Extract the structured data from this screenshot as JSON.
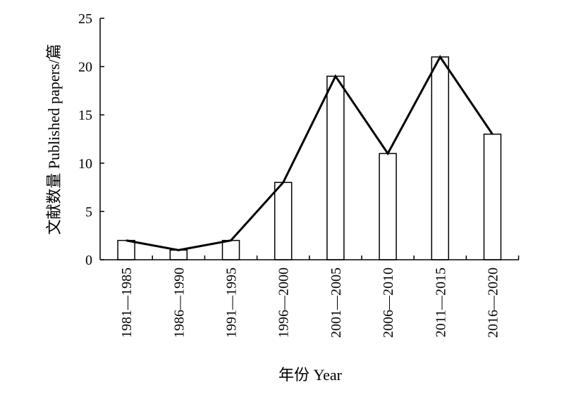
{
  "chart_data": {
    "type": "bar",
    "categories": [
      "1981—1985",
      "1986—1990",
      "1991—1995",
      "1996—2000",
      "2001—2005",
      "2006—2010",
      "2011—2015",
      "2016—2020"
    ],
    "values": [
      2,
      1,
      2,
      8,
      19,
      11,
      21,
      13
    ],
    "line_overlay": true,
    "xlabel": "年份 Year",
    "ylabel": "文献数量 Published papers/篇",
    "ylim": [
      0,
      25
    ],
    "yticks": [
      0,
      5,
      10,
      15,
      20,
      25
    ],
    "grid": false,
    "colors": {
      "bar_fill": "#ffffff",
      "bar_stroke": "#000000",
      "line": "#000000"
    }
  }
}
